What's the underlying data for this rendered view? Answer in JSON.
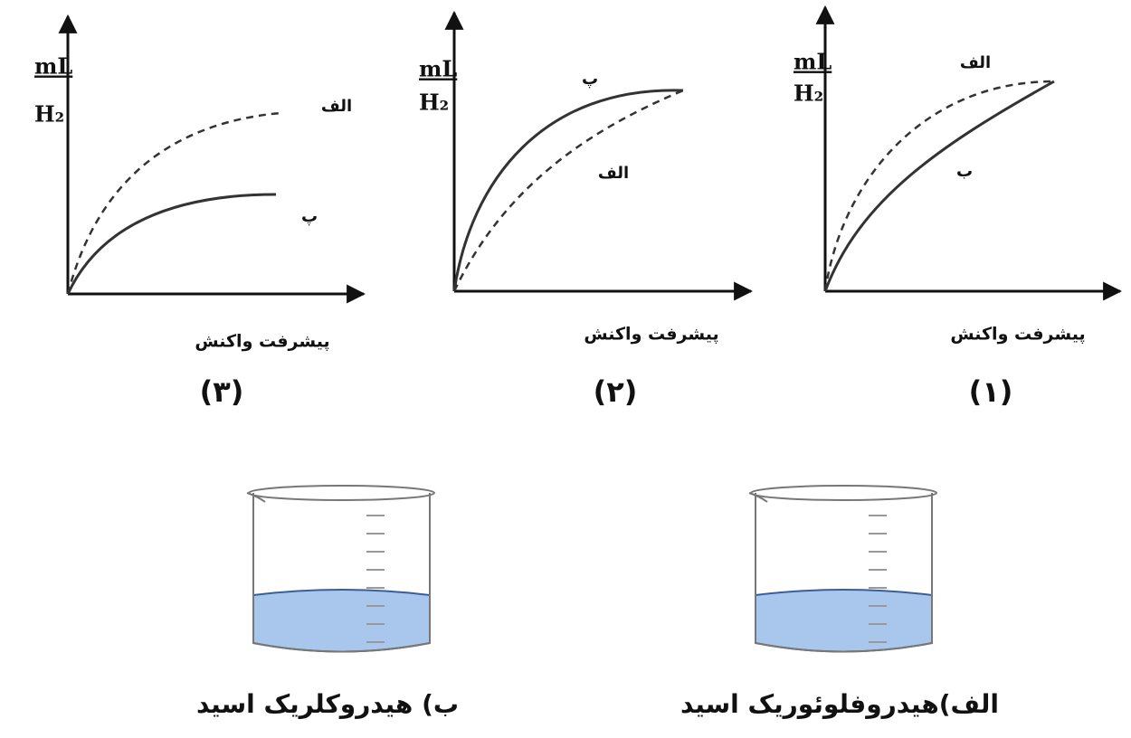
{
  "graphs": [
    {
      "number": "(۳)",
      "y_label": [
        "mL",
        "H₂"
      ],
      "x_label": "پیشرفت واکنش",
      "curve_labels": [
        "الف",
        "پ"
      ]
    },
    {
      "number": "(۲)",
      "y_label": [
        "mL",
        "H₂"
      ],
      "x_label": "پیشرفت واکنش",
      "curve_labels": [
        "الف",
        "پ"
      ]
    },
    {
      "number": "(۱)",
      "y_label": [
        "mL",
        "H₂"
      ],
      "x_label": "پیشرفت واکنش",
      "curve_labels": [
        "الف",
        "ب"
      ]
    }
  ],
  "beakers": [
    {
      "caption": "ب)  هیدروکلریک اسید"
    },
    {
      "caption": "الف)هیدروفلوئوریک اسید"
    }
  ]
}
